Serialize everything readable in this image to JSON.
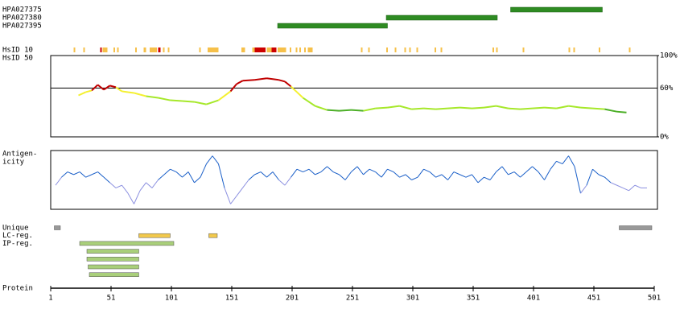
{
  "chart_data": {
    "type": "protein-map",
    "xlim": [
      1,
      501
    ],
    "xticks": [
      1,
      51,
      101,
      151,
      201,
      251,
      301,
      351,
      401,
      451,
      501
    ],
    "axis_label": "Protein",
    "antibodies": {
      "color": "#2e8b22",
      "items": [
        {
          "name": "HPA027375",
          "start": 382,
          "end": 458
        },
        {
          "name": "HPA027380",
          "start": 279,
          "end": 371
        },
        {
          "name": "HPA027395",
          "start": 189,
          "end": 280
        }
      ]
    },
    "hsid10": {
      "label": "HsID 10",
      "segments": [
        {
          "start": 20,
          "end": 21,
          "color": "#f6c04a"
        },
        {
          "start": 28,
          "end": 29,
          "color": "#f6c04a"
        },
        {
          "start": 42,
          "end": 43,
          "color": "#cc0000"
        },
        {
          "start": 44,
          "end": 48,
          "color": "#f6c04a"
        },
        {
          "start": 53,
          "end": 54,
          "color": "#f6c04a"
        },
        {
          "start": 56,
          "end": 57,
          "color": "#f6c04a"
        },
        {
          "start": 71,
          "end": 72,
          "color": "#f6c04a"
        },
        {
          "start": 78,
          "end": 80,
          "color": "#f6c04a"
        },
        {
          "start": 83,
          "end": 89,
          "color": "#f6c04a"
        },
        {
          "start": 90,
          "end": 92,
          "color": "#cc0000"
        },
        {
          "start": 94,
          "end": 95,
          "color": "#f6c04a"
        },
        {
          "start": 98,
          "end": 99,
          "color": "#f6c04a"
        },
        {
          "start": 124,
          "end": 125,
          "color": "#f6c04a"
        },
        {
          "start": 131,
          "end": 140,
          "color": "#f6c04a"
        },
        {
          "start": 159,
          "end": 162,
          "color": "#f6c04a"
        },
        {
          "start": 168,
          "end": 170,
          "color": "#f6c04a"
        },
        {
          "start": 170,
          "end": 179,
          "color": "#cc0000"
        },
        {
          "start": 180,
          "end": 184,
          "color": "#f6c04a"
        },
        {
          "start": 184,
          "end": 188,
          "color": "#cc0000"
        },
        {
          "start": 189,
          "end": 196,
          "color": "#f6c04a"
        },
        {
          "start": 199,
          "end": 200,
          "color": "#f6c04a"
        },
        {
          "start": 204,
          "end": 205,
          "color": "#f6c04a"
        },
        {
          "start": 207,
          "end": 208,
          "color": "#f6c04a"
        },
        {
          "start": 211,
          "end": 212,
          "color": "#f6c04a"
        },
        {
          "start": 214,
          "end": 218,
          "color": "#f6c04a"
        },
        {
          "start": 258,
          "end": 259,
          "color": "#f6c04a"
        },
        {
          "start": 264,
          "end": 265,
          "color": "#f6c04a"
        },
        {
          "start": 279,
          "end": 280,
          "color": "#f6c04a"
        },
        {
          "start": 286,
          "end": 287,
          "color": "#f6c04a"
        },
        {
          "start": 294,
          "end": 295,
          "color": "#f6c04a"
        },
        {
          "start": 298,
          "end": 299,
          "color": "#f6c04a"
        },
        {
          "start": 304,
          "end": 305,
          "color": "#f6c04a"
        },
        {
          "start": 319,
          "end": 320,
          "color": "#f6c04a"
        },
        {
          "start": 324,
          "end": 325,
          "color": "#f6c04a"
        },
        {
          "start": 367,
          "end": 368,
          "color": "#f6c04a"
        },
        {
          "start": 370,
          "end": 371,
          "color": "#f6c04a"
        },
        {
          "start": 392,
          "end": 393,
          "color": "#f6c04a"
        },
        {
          "start": 430,
          "end": 431,
          "color": "#f6c04a"
        },
        {
          "start": 434,
          "end": 435,
          "color": "#f6c04a"
        },
        {
          "start": 455,
          "end": 456,
          "color": "#f6c04a"
        },
        {
          "start": 480,
          "end": 481,
          "color": "#f6c04a"
        }
      ]
    },
    "hsid50": {
      "label": "HsID 50",
      "ylim": [
        0,
        100
      ],
      "yticks": [
        {
          "value": 0,
          "label": "0%"
        },
        {
          "value": 60,
          "label": "60%"
        },
        {
          "value": 100,
          "label": "100%"
        }
      ],
      "color_bands": [
        {
          "min": 60,
          "color": "#c00000"
        },
        {
          "min": 50,
          "color": "#f4f030"
        },
        {
          "min": 33,
          "color": "#a6e82a"
        },
        {
          "min": 0,
          "color": "#4caf27"
        }
      ],
      "x": [
        24,
        30,
        35,
        40,
        45,
        50,
        55,
        60,
        65,
        70,
        75,
        80,
        90,
        100,
        110,
        120,
        130,
        140,
        150,
        155,
        160,
        170,
        180,
        190,
        195,
        200,
        205,
        210,
        220,
        230,
        240,
        250,
        260,
        270,
        280,
        290,
        300,
        310,
        320,
        330,
        340,
        350,
        360,
        370,
        380,
        390,
        400,
        410,
        420,
        430,
        440,
        450,
        460,
        470,
        478
      ],
      "values": [
        51,
        55,
        57,
        64,
        58,
        63,
        61,
        56,
        55,
        54,
        52,
        50,
        48,
        45,
        44,
        43,
        40,
        45,
        56,
        65,
        69,
        70,
        72,
        70,
        68,
        62,
        55,
        48,
        38,
        33,
        32,
        33,
        32,
        35,
        36,
        38,
        34,
        35,
        34,
        35,
        36,
        35,
        36,
        38,
        35,
        34,
        35,
        36,
        35,
        38,
        36,
        35,
        34,
        31,
        30
      ]
    },
    "antigenicity": {
      "label_lines": [
        "Antigen-",
        "icity"
      ],
      "ylim": [
        -1.1,
        1.1
      ],
      "colors": {
        "high": "#1a5fc8",
        "low": "#8c90e0"
      },
      "x": [
        5,
        10,
        15,
        20,
        25,
        30,
        35,
        40,
        45,
        50,
        55,
        60,
        65,
        70,
        75,
        80,
        85,
        90,
        95,
        100,
        105,
        110,
        115,
        120,
        125,
        130,
        135,
        140,
        145,
        150,
        155,
        160,
        165,
        170,
        175,
        180,
        185,
        190,
        195,
        200,
        205,
        210,
        215,
        220,
        225,
        230,
        235,
        240,
        245,
        250,
        255,
        260,
        265,
        270,
        275,
        280,
        285,
        290,
        295,
        300,
        305,
        310,
        315,
        320,
        325,
        330,
        335,
        340,
        345,
        350,
        355,
        360,
        365,
        370,
        375,
        380,
        385,
        390,
        395,
        400,
        405,
        410,
        415,
        420,
        425,
        430,
        435,
        440,
        445,
        450,
        455,
        460,
        465,
        470,
        475,
        480,
        485,
        490,
        495
      ],
      "values": [
        -0.2,
        0.1,
        0.3,
        0.2,
        0.3,
        0.1,
        0.2,
        0.3,
        0.1,
        -0.1,
        -0.3,
        -0.2,
        -0.5,
        -0.9,
        -0.4,
        -0.1,
        -0.3,
        0.0,
        0.2,
        0.4,
        0.3,
        0.1,
        0.3,
        -0.1,
        0.1,
        0.6,
        0.9,
        0.6,
        -0.3,
        -0.9,
        -0.6,
        -0.3,
        0.0,
        0.2,
        0.3,
        0.1,
        0.3,
        0.0,
        -0.2,
        0.1,
        0.4,
        0.3,
        0.4,
        0.2,
        0.3,
        0.5,
        0.3,
        0.2,
        0.0,
        0.3,
        0.5,
        0.2,
        0.4,
        0.3,
        0.1,
        0.4,
        0.3,
        0.1,
        0.2,
        0.0,
        0.1,
        0.4,
        0.3,
        0.1,
        0.2,
        0.0,
        0.3,
        0.2,
        0.1,
        0.2,
        -0.1,
        0.1,
        0.0,
        0.3,
        0.5,
        0.2,
        0.3,
        0.1,
        0.3,
        0.5,
        0.3,
        0.0,
        0.4,
        0.7,
        0.6,
        0.9,
        0.5,
        -0.5,
        -0.2,
        0.4,
        0.2,
        0.1,
        -0.1,
        -0.2,
        -0.3,
        -0.4,
        -0.2,
        -0.3,
        -0.3
      ]
    },
    "features": [
      {
        "label": "Unique",
        "color": "#999999",
        "segments": [
          {
            "start": 4,
            "end": 9
          },
          {
            "start": 472,
            "end": 499
          }
        ]
      },
      {
        "label": "LC-reg.",
        "color": "#f2c94c",
        "segments": [
          {
            "start": 74,
            "end": 100
          },
          {
            "start": 132,
            "end": 139
          }
        ]
      },
      {
        "label": "IP-reg.",
        "color": "#a9cf7a",
        "stacked": true,
        "segments": [
          {
            "start": 25,
            "end": 103
          },
          {
            "start": 31,
            "end": 74
          },
          {
            "start": 31,
            "end": 74
          },
          {
            "start": 32,
            "end": 74
          },
          {
            "start": 33,
            "end": 74
          }
        ]
      }
    ]
  }
}
